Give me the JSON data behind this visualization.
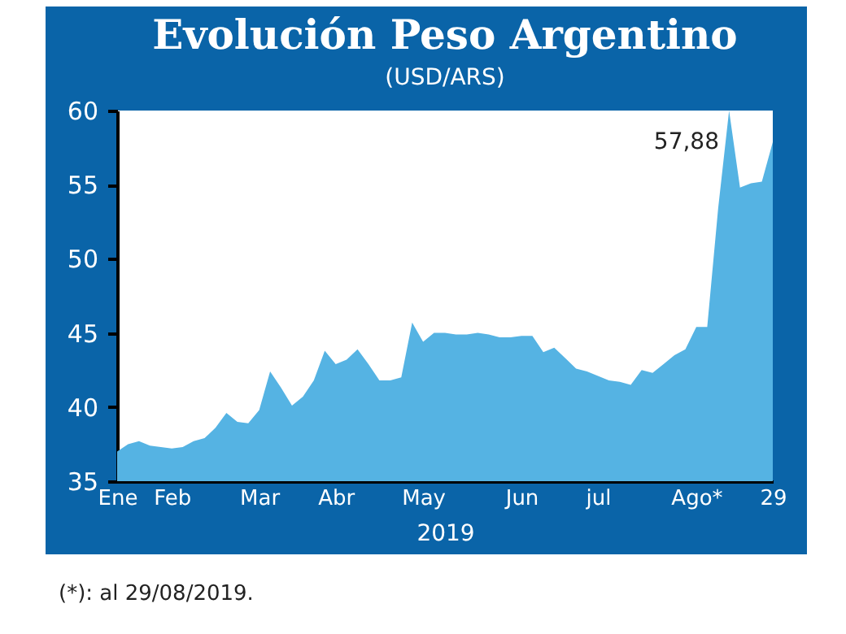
{
  "chart_data": {
    "type": "area",
    "title": "Evolución Peso Argentino",
    "subtitle": "(USD/ARS)",
    "xlabel": "2019",
    "annotations": [
      {
        "text": "57,88",
        "x": "29",
        "y": 57.88
      },
      "(*): al 29/08/2019."
    ],
    "categories": [
      "Ene",
      null,
      null,
      null,
      null,
      "Feb",
      null,
      null,
      null,
      null,
      null,
      null,
      null,
      "Mar",
      null,
      null,
      null,
      null,
      null,
      null,
      "Abr",
      null,
      null,
      null,
      null,
      null,
      null,
      null,
      "May",
      null,
      null,
      null,
      null,
      null,
      null,
      null,
      null,
      "Jun",
      null,
      null,
      null,
      null,
      null,
      null,
      "jul",
      null,
      null,
      null,
      null,
      null,
      null,
      null,
      null,
      "Ago*",
      null,
      null,
      null,
      null,
      null,
      null,
      "29"
    ],
    "series": [
      {
        "color": "#55b3e3",
        "values": [
          37.0,
          37.5,
          37.7,
          37.4,
          37.3,
          37.2,
          37.3,
          37.7,
          37.9,
          38.6,
          39.6,
          39.0,
          38.9,
          39.8,
          42.4,
          41.3,
          40.1,
          40.7,
          41.8,
          43.8,
          42.9,
          43.2,
          43.9,
          42.9,
          41.8,
          41.8,
          42.0,
          45.7,
          44.4,
          45.0,
          45.0,
          44.9,
          44.9,
          45.0,
          44.9,
          44.7,
          44.7,
          44.8,
          44.8,
          43.7,
          44.0,
          43.3,
          42.6,
          42.4,
          42.1,
          41.8,
          41.7,
          41.5,
          42.5,
          42.3,
          42.9,
          43.5,
          43.9,
          45.4,
          45.4,
          53.4,
          60.0,
          54.8,
          55.1,
          55.2,
          57.88
        ]
      }
    ],
    "ylim": [
      35,
      60
    ],
    "yticks": [
      35,
      40,
      45,
      50,
      55,
      60
    ],
    "grid": false
  }
}
